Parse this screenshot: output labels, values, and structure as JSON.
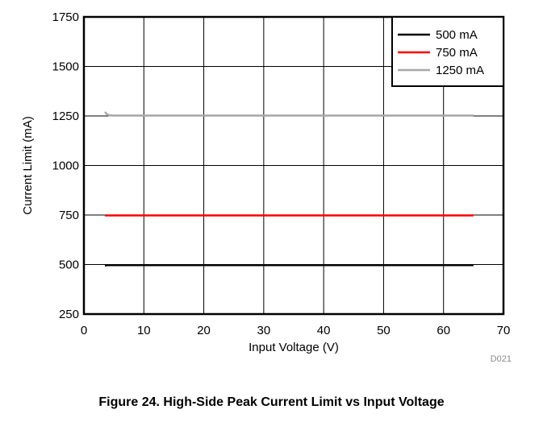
{
  "figure_caption": "Figure 24. High-Side Peak Current Limit vs Input Voltage",
  "figure_code": "D021",
  "chart_data": {
    "type": "line",
    "title": "",
    "xlabel": "Input Voltage (V)",
    "ylabel": "Current Limit (mA)",
    "xlim": [
      0,
      70
    ],
    "ylim": [
      250,
      1750
    ],
    "xticks": [
      0,
      10,
      20,
      30,
      40,
      50,
      60,
      70
    ],
    "yticks": [
      250,
      500,
      750,
      1000,
      1250,
      1500,
      1750
    ],
    "grid": true,
    "legend_position": "top-right",
    "series": [
      {
        "name": "500 mA",
        "color": "#000000",
        "x": [
          3.5,
          4,
          5,
          10,
          20,
          30,
          40,
          50,
          60,
          65
        ],
        "y": [
          495,
          497,
          497,
          497,
          497,
          497,
          497,
          497,
          497,
          497
        ]
      },
      {
        "name": "750 mA",
        "color": "#ff0000",
        "x": [
          3.5,
          4,
          5,
          10,
          20,
          30,
          40,
          50,
          60,
          65
        ],
        "y": [
          748,
          748,
          748,
          748,
          748,
          748,
          748,
          748,
          748,
          748
        ]
      },
      {
        "name": "1250 mA",
        "color": "#a6a6a6",
        "x": [
          3.5,
          3.8,
          4.2,
          5,
          10,
          20,
          30,
          40,
          50,
          60,
          65
        ],
        "y": [
          1270,
          1260,
          1253,
          1252,
          1252,
          1252,
          1252,
          1252,
          1252,
          1252,
          1252
        ]
      }
    ]
  }
}
